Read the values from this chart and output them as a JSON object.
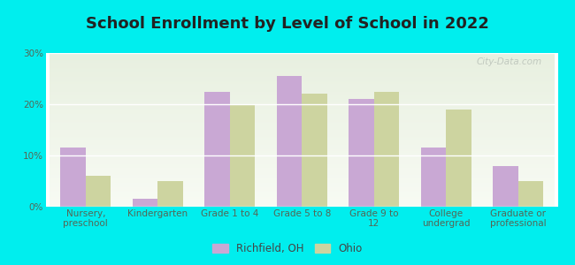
{
  "title": "School Enrollment by Level of School in 2022",
  "categories": [
    "Nursery,\npreschool",
    "Kindergarten",
    "Grade 1 to 4",
    "Grade 5 to 8",
    "Grade 9 to\n12",
    "College\nundergrad",
    "Graduate or\nprofessional"
  ],
  "richfield_values": [
    11.5,
    1.5,
    22.5,
    25.5,
    21.0,
    11.5,
    8.0
  ],
  "ohio_values": [
    6.0,
    5.0,
    20.0,
    22.0,
    22.5,
    19.0,
    5.0
  ],
  "richfield_color": "#c9a8d4",
  "ohio_color": "#cdd4a0",
  "background_color": "#00EEEE",
  "plot_bg_top": "#e8f0e0",
  "plot_bg_bottom": "#f8fbf4",
  "ylim": [
    0,
    30
  ],
  "yticks": [
    0,
    10,
    20,
    30
  ],
  "legend_labels": [
    "Richfield, OH",
    "Ohio"
  ],
  "bar_width": 0.35,
  "title_fontsize": 13,
  "tick_fontsize": 7.5,
  "legend_fontsize": 8.5,
  "watermark_text": "City-Data.com"
}
